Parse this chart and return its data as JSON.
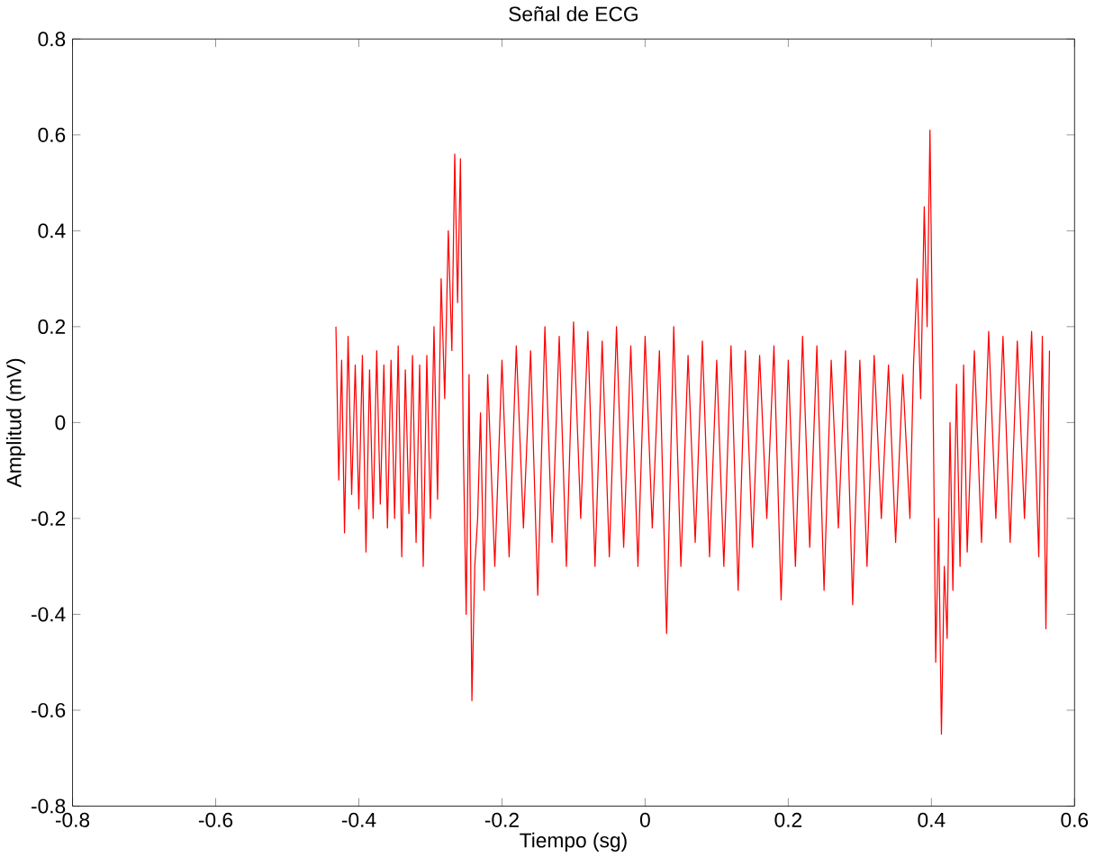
{
  "chart_data": {
    "type": "line",
    "title": "Señal de ECG",
    "xlabel": "Tiempo (sg)",
    "ylabel": "Amplitud (mV)",
    "xlim": [
      -0.8,
      0.6
    ],
    "ylim": [
      -0.8,
      0.8
    ],
    "xticks": [
      -0.8,
      -0.6,
      -0.4,
      -0.2,
      0,
      0.2,
      0.4,
      0.6
    ],
    "yticks": [
      -0.8,
      -0.6,
      -0.4,
      -0.2,
      0,
      0.2,
      0.4,
      0.6,
      0.8
    ],
    "grid": false,
    "marker": "none",
    "line_style": "solid",
    "series": [
      {
        "color": "#ff0000",
        "x": [
          -0.432,
          -0.428,
          -0.424,
          -0.42,
          -0.415,
          -0.41,
          -0.405,
          -0.4,
          -0.395,
          -0.39,
          -0.385,
          -0.38,
          -0.375,
          -0.37,
          -0.365,
          -0.36,
          -0.355,
          -0.35,
          -0.345,
          -0.34,
          -0.335,
          -0.33,
          -0.325,
          -0.32,
          -0.315,
          -0.31,
          -0.305,
          -0.3,
          -0.295,
          -0.29,
          -0.285,
          -0.28,
          -0.275,
          -0.27,
          -0.266,
          -0.262,
          -0.258,
          -0.254,
          -0.25,
          -0.246,
          -0.242,
          -0.238,
          -0.234,
          -0.23,
          -0.225,
          -0.22,
          -0.21,
          -0.2,
          -0.19,
          -0.18,
          -0.17,
          -0.16,
          -0.15,
          -0.14,
          -0.13,
          -0.12,
          -0.11,
          -0.1,
          -0.09,
          -0.08,
          -0.07,
          -0.06,
          -0.05,
          -0.04,
          -0.03,
          -0.02,
          -0.01,
          0,
          0.01,
          0.02,
          0.03,
          0.04,
          0.05,
          0.06,
          0.07,
          0.08,
          0.09,
          0.1,
          0.11,
          0.12,
          0.13,
          0.14,
          0.15,
          0.16,
          0.17,
          0.18,
          0.19,
          0.2,
          0.21,
          0.22,
          0.23,
          0.24,
          0.25,
          0.26,
          0.27,
          0.28,
          0.29,
          0.3,
          0.31,
          0.32,
          0.33,
          0.34,
          0.35,
          0.36,
          0.37,
          0.375,
          0.38,
          0.385,
          0.39,
          0.394,
          0.398,
          0.402,
          0.406,
          0.41,
          0.414,
          0.418,
          0.422,
          0.426,
          0.43,
          0.435,
          0.44,
          0.445,
          0.45,
          0.46,
          0.47,
          0.48,
          0.49,
          0.5,
          0.51,
          0.52,
          0.53,
          0.54,
          0.55,
          0.555,
          0.56,
          0.565
        ],
        "values": [
          0.2,
          -0.12,
          0.13,
          -0.23,
          0.18,
          -0.15,
          0.12,
          -0.18,
          0.14,
          -0.27,
          0.11,
          -0.2,
          0.15,
          -0.17,
          0.12,
          -0.22,
          0.13,
          -0.2,
          0.16,
          -0.28,
          0.11,
          -0.19,
          0.14,
          -0.25,
          0.12,
          -0.3,
          0.14,
          -0.2,
          0.2,
          -0.16,
          0.3,
          0.05,
          0.4,
          0.15,
          0.56,
          0.25,
          0.55,
          -0.05,
          -0.4,
          0.1,
          -0.58,
          -0.3,
          -0.2,
          0.02,
          -0.35,
          0.1,
          -0.3,
          0.13,
          -0.28,
          0.16,
          -0.22,
          0.15,
          -0.36,
          0.2,
          -0.25,
          0.18,
          -0.3,
          0.21,
          -0.2,
          0.19,
          -0.3,
          0.17,
          -0.28,
          0.2,
          -0.26,
          0.16,
          -0.3,
          0.18,
          -0.22,
          0.15,
          -0.44,
          0.2,
          -0.3,
          0.14,
          -0.25,
          0.17,
          -0.28,
          0.13,
          -0.3,
          0.16,
          -0.35,
          0.15,
          -0.26,
          0.14,
          -0.2,
          0.16,
          -0.37,
          0.13,
          -0.3,
          0.18,
          -0.26,
          0.16,
          -0.35,
          0.13,
          -0.22,
          0.15,
          -0.38,
          0.13,
          -0.3,
          0.14,
          -0.2,
          0.12,
          -0.25,
          0.1,
          -0.2,
          0.12,
          0.3,
          0.05,
          0.45,
          0.2,
          0.61,
          0.1,
          -0.5,
          -0.2,
          -0.65,
          -0.3,
          -0.45,
          0.0,
          -0.35,
          0.08,
          -0.3,
          0.12,
          -0.27,
          0.15,
          -0.25,
          0.19,
          -0.2,
          0.18,
          -0.25,
          0.17,
          -0.2,
          0.19,
          -0.28,
          0.18,
          -0.43,
          0.15
        ]
      }
    ]
  }
}
